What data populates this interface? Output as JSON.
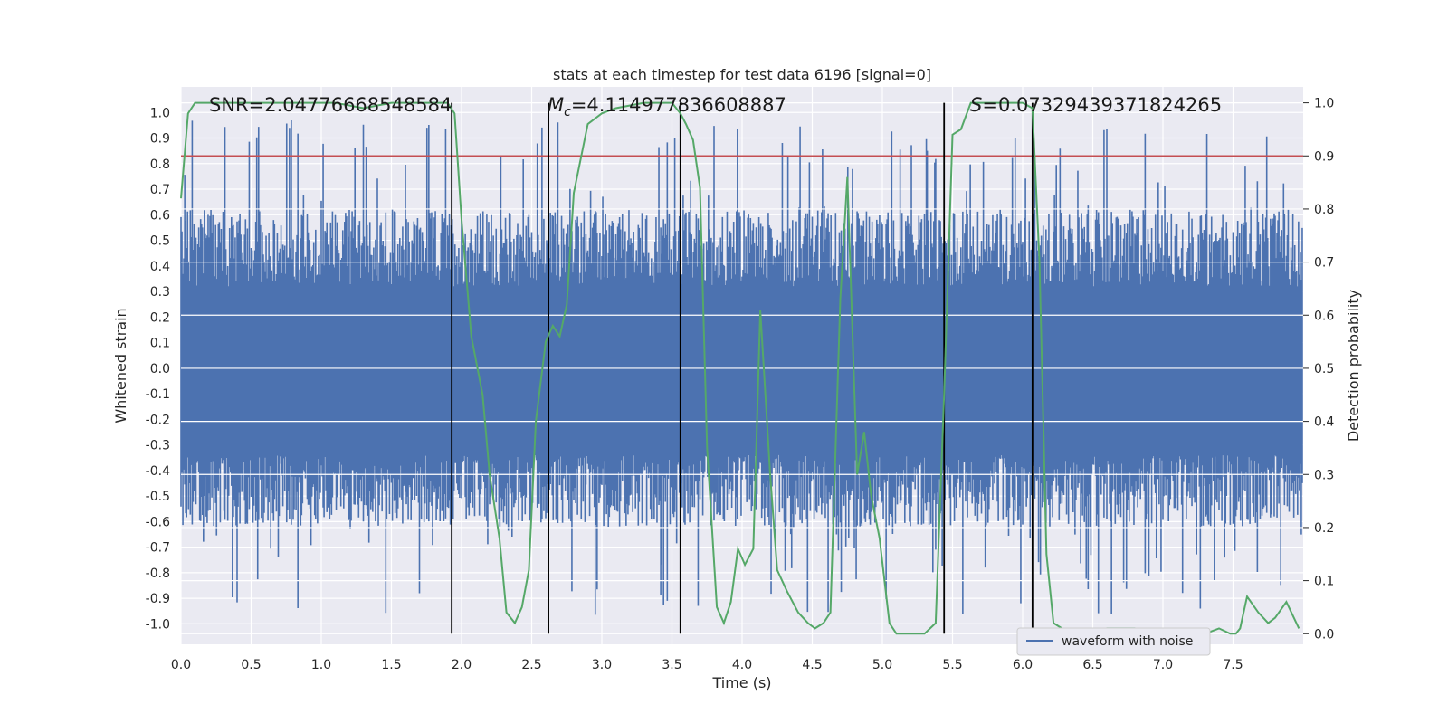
{
  "chart_data": {
    "type": "line",
    "title": "stats at each timestep for test data 6196 [signal=0]",
    "xlabel": "Time (s)",
    "ylabel_left": "Whitened strain",
    "ylabel_right": "Detection probability",
    "xlim": [
      0,
      8
    ],
    "ylim_left": [
      -1.08,
      1.1
    ],
    "ylim_right": [
      -0.02,
      1.03
    ],
    "x_ticks": [
      "0.0",
      "0.5",
      "1.0",
      "1.5",
      "2.0",
      "2.5",
      "3.0",
      "3.5",
      "4.0",
      "4.5",
      "5.0",
      "5.5",
      "6.0",
      "6.5",
      "7.0",
      "7.5"
    ],
    "y_ticks_left": [
      "-1.0",
      "-0.9",
      "-0.8",
      "-0.7",
      "-0.6",
      "-0.5",
      "-0.4",
      "-0.3",
      "-0.2",
      "-0.1",
      "0.0",
      "0.1",
      "0.2",
      "0.3",
      "0.4",
      "0.5",
      "0.6",
      "0.7",
      "0.8",
      "0.9",
      "1.0"
    ],
    "y_ticks_right": [
      "0.0",
      "0.1",
      "0.2",
      "0.3",
      "0.4",
      "0.5",
      "0.6",
      "0.7",
      "0.8",
      "0.9",
      "1.0"
    ],
    "threshold": {
      "value": 0.9,
      "axis": "right",
      "color": "#c44e52"
    },
    "event_lines_x": [
      1.93,
      2.62,
      3.56,
      5.44,
      6.07
    ],
    "event_lines_ymax_right": 1.0,
    "annotations": {
      "snr": "SNR=2.04776668548584",
      "mc_symbol": "M",
      "mc_sub": "c",
      "mc_value": "=4.114977836608887",
      "s_symbol": "S",
      "s_value": "=0.07329439371824265"
    },
    "legend": {
      "label": "waveform with noise",
      "placement": "bottom-right"
    },
    "waveform": {
      "name": "waveform with noise",
      "color": "#4c72b0",
      "description_range": [
        -0.97,
        0.98
      ],
      "n_samples": 1200,
      "seed": 6196
    },
    "series": [
      {
        "name": "detection probability",
        "axis": "right",
        "color": "#55a868",
        "x": [
          0.0,
          0.05,
          0.1,
          0.3,
          0.5,
          0.8,
          1.0,
          1.1,
          1.3,
          1.5,
          1.9,
          1.95,
          2.0,
          2.07,
          2.15,
          2.2,
          2.27,
          2.32,
          2.38,
          2.43,
          2.48,
          2.53,
          2.6,
          2.65,
          2.7,
          2.75,
          2.8,
          2.9,
          3.0,
          3.1,
          3.3,
          3.5,
          3.56,
          3.6,
          3.65,
          3.7,
          3.75,
          3.82,
          3.87,
          3.92,
          3.97,
          4.02,
          4.08,
          4.13,
          4.2,
          4.25,
          4.32,
          4.4,
          4.47,
          4.52,
          4.58,
          4.63,
          4.7,
          4.75,
          4.82,
          4.87,
          4.92,
          4.98,
          5.05,
          5.1,
          5.2,
          5.3,
          5.38,
          5.44,
          5.5,
          5.56,
          5.63,
          5.7,
          5.9,
          6.0,
          6.07,
          6.12,
          6.17,
          6.22,
          6.28,
          6.35,
          6.45,
          6.6,
          6.8,
          7.0,
          7.2,
          7.3,
          7.4,
          7.48,
          7.52,
          7.55,
          7.6,
          7.68,
          7.75,
          7.8,
          7.88,
          7.97
        ],
        "values": [
          0.82,
          0.98,
          1.0,
          1.0,
          1.0,
          1.0,
          1.0,
          1.0,
          0.99,
          1.0,
          1.0,
          0.98,
          0.78,
          0.56,
          0.45,
          0.3,
          0.18,
          0.04,
          0.02,
          0.05,
          0.12,
          0.4,
          0.55,
          0.58,
          0.56,
          0.62,
          0.83,
          0.96,
          0.98,
          0.99,
          1.0,
          1.0,
          0.98,
          0.96,
          0.93,
          0.84,
          0.35,
          0.05,
          0.02,
          0.06,
          0.16,
          0.13,
          0.16,
          0.61,
          0.3,
          0.12,
          0.08,
          0.04,
          0.02,
          0.01,
          0.02,
          0.04,
          0.63,
          0.86,
          0.3,
          0.38,
          0.26,
          0.18,
          0.02,
          0.0,
          0.0,
          0.0,
          0.02,
          0.45,
          0.94,
          0.95,
          1.0,
          1.0,
          1.0,
          1.0,
          0.99,
          0.7,
          0.15,
          0.02,
          0.01,
          0.0,
          0.0,
          0.01,
          0.01,
          0.0,
          0.0,
          0.0,
          0.01,
          0.0,
          0.0,
          0.01,
          0.07,
          0.04,
          0.02,
          0.03,
          0.06,
          0.01
        ]
      }
    ]
  }
}
